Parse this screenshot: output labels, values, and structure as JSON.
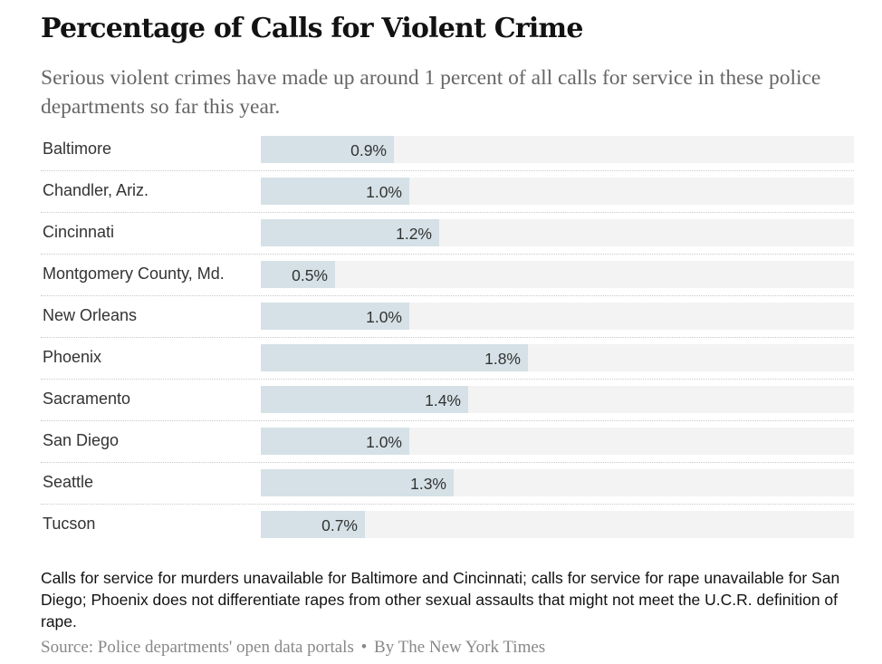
{
  "title": "Percentage of Calls for Violent Crime",
  "subtitle": "Serious violent crimes have made up around 1 percent of all calls for service in these police departments so far this year.",
  "note": "Calls for service for murders unavailable for Baltimore and Cincinnati; calls for service for rape unavailable for San Diego; Phoenix does not differentiate rapes from other sexual assaults that might not meet the U.C.R. definition of rape.",
  "source": {
    "text": "Source: Police departments' open data portals",
    "separator": "•",
    "byline": "By The New York Times"
  },
  "colors": {
    "bar": "#d5e1e6",
    "track": "#f3f3f3",
    "text": "#333333",
    "subtitle": "#666666",
    "source": "#888888"
  },
  "chart_data": {
    "type": "bar",
    "orientation": "horizontal",
    "title": "Percentage of Calls for Violent Crime",
    "xlabel": "",
    "ylabel": "",
    "xlim": [
      0,
      4.0
    ],
    "grid": false,
    "categories": [
      "Baltimore",
      "Chandler, Ariz.",
      "Cincinnati",
      "Montgomery County, Md.",
      "New Orleans",
      "Phoenix",
      "Sacramento",
      "San Diego",
      "Seattle",
      "Tucson"
    ],
    "values": [
      0.9,
      1.0,
      1.2,
      0.5,
      1.0,
      1.8,
      1.4,
      1.0,
      1.3,
      0.7
    ],
    "value_labels": [
      "0.9%",
      "1.0%",
      "1.2%",
      "0.5%",
      "1.0%",
      "1.8%",
      "1.4%",
      "1.0%",
      "1.3%",
      "0.7%"
    ]
  }
}
